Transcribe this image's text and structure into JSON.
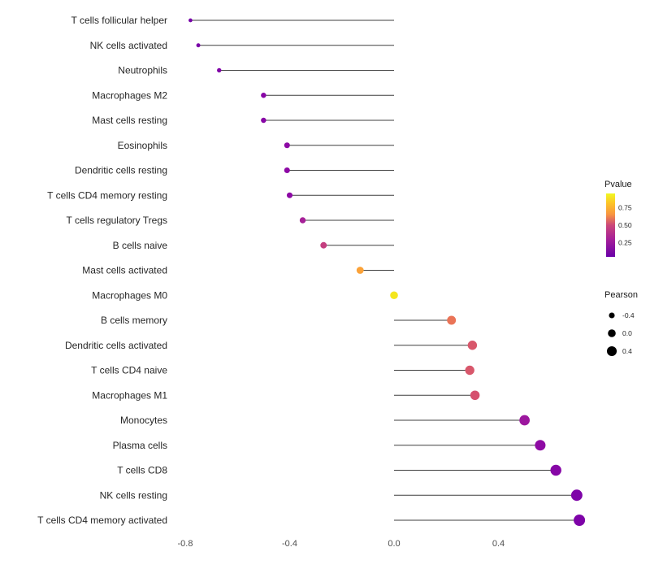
{
  "chart_data": {
    "type": "lollipop",
    "title": "",
    "xlabel": "",
    "ylabel": "",
    "x_ticks": [
      "-0.8",
      "-0.4",
      "0.0",
      "0.4"
    ],
    "x_tick_values": [
      -0.8,
      -0.4,
      0.0,
      0.4
    ],
    "xlim": [
      -0.88,
      0.82
    ],
    "grid": "off",
    "points": [
      {
        "label": "T cells follicular helper",
        "pearson": -0.78,
        "pvalue": 0.1,
        "color": "#7701a8"
      },
      {
        "label": "NK cells activated",
        "pearson": -0.75,
        "pvalue": 0.1,
        "color": "#7a02a8"
      },
      {
        "label": "Neutrophils",
        "pearson": -0.67,
        "pvalue": 0.12,
        "color": "#8104a7"
      },
      {
        "label": "Macrophages M2",
        "pearson": -0.5,
        "pvalue": 0.15,
        "color": "#8806a6"
      },
      {
        "label": "Mast cells resting",
        "pearson": -0.5,
        "pvalue": 0.15,
        "color": "#8806a6"
      },
      {
        "label": "Eosinophils",
        "pearson": -0.41,
        "pvalue": 0.18,
        "color": "#8d09a5"
      },
      {
        "label": "Dendritic cells resting",
        "pearson": -0.41,
        "pvalue": 0.18,
        "color": "#8d09a5"
      },
      {
        "label": "T cells CD4 memory resting",
        "pearson": -0.4,
        "pvalue": 0.18,
        "color": "#8d09a5"
      },
      {
        "label": "T cells regulatory  Tregs",
        "pearson": -0.35,
        "pvalue": 0.28,
        "color": "#a62098"
      },
      {
        "label": "B cells naive",
        "pearson": -0.27,
        "pvalue": 0.45,
        "color": "#c43e7f"
      },
      {
        "label": "Mast cells activated",
        "pearson": -0.13,
        "pvalue": 0.8,
        "color": "#fba238"
      },
      {
        "label": "Macrophages M0",
        "pearson": 0.0,
        "pvalue": 0.95,
        "color": "#f4e61e"
      },
      {
        "label": "B cells memory",
        "pearson": 0.22,
        "pvalue": 0.6,
        "color": "#ea7457"
      },
      {
        "label": "Dendritic cells activated",
        "pearson": 0.3,
        "pvalue": 0.45,
        "color": "#d8576b"
      },
      {
        "label": "T cells CD4 naive",
        "pearson": 0.29,
        "pvalue": 0.45,
        "color": "#d8576b"
      },
      {
        "label": "Macrophages M1",
        "pearson": 0.31,
        "pvalue": 0.42,
        "color": "#d5506e"
      },
      {
        "label": "Monocytes",
        "pearson": 0.5,
        "pvalue": 0.2,
        "color": "#9c179e"
      },
      {
        "label": "Plasma cells",
        "pearson": 0.56,
        "pvalue": 0.15,
        "color": "#8e0ba4"
      },
      {
        "label": "T cells CD8",
        "pearson": 0.62,
        "pvalue": 0.12,
        "color": "#8606a6"
      },
      {
        "label": "NK cells resting",
        "pearson": 0.7,
        "pvalue": 0.1,
        "color": "#7e03a8"
      },
      {
        "label": "T cells CD4 memory activated",
        "pearson": 0.71,
        "pvalue": 0.1,
        "color": "#7e03a8"
      }
    ],
    "legend": {
      "color": {
        "title": "Pvalue",
        "ticks": [
          "0.75",
          "0.50",
          "0.25"
        ],
        "tick_values": [
          0.75,
          0.5,
          0.25
        ],
        "domain": [
          0.05,
          0.95
        ],
        "gradient_stops": [
          {
            "offset": 0.0,
            "color": "#f0f921"
          },
          {
            "offset": 0.15,
            "color": "#fdc527"
          },
          {
            "offset": 0.33,
            "color": "#f89540"
          },
          {
            "offset": 0.5,
            "color": "#cb4779"
          },
          {
            "offset": 0.72,
            "color": "#a62098"
          },
          {
            "offset": 1.0,
            "color": "#6a00a8"
          }
        ]
      },
      "size": {
        "title": "Pearson",
        "ticks": [
          "-0.4",
          "0.0",
          "0.4"
        ],
        "tick_values": [
          -0.4,
          0.0,
          0.4
        ]
      }
    },
    "styles": {
      "background": "#ffffff",
      "stem_color": "#3f3f3f",
      "axis_text_color": "#4d4d4d",
      "label_color": "#262626",
      "legend_title_color": "#1a1a1a",
      "legend_dot_color": "#000000"
    }
  }
}
